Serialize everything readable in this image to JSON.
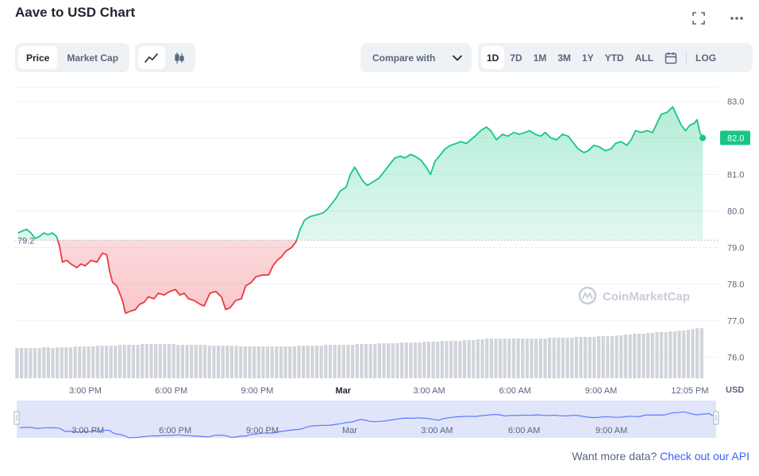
{
  "header": {
    "title": "Aave to USD Chart"
  },
  "toolbar": {
    "metric_tabs": [
      "Price",
      "Market Cap"
    ],
    "active_metric": "Price",
    "chart_types": [
      "line-chart-icon",
      "candlestick-icon"
    ],
    "compare_label": "Compare with",
    "ranges": [
      "1D",
      "7D",
      "1M",
      "3M",
      "1Y",
      "YTD",
      "ALL"
    ],
    "active_range": "1D",
    "log_label": "LOG"
  },
  "colors": {
    "up": "#16c784",
    "down": "#ea3943",
    "volume": "#d1d5db",
    "navigator_fill": "#e1e5fa",
    "navigator_line": "#3861fb",
    "link": "#3861fb"
  },
  "watermark": "CoinMarketCap",
  "footer": {
    "text": "Want more data?",
    "link": "Check out our API"
  },
  "chart_data": {
    "type": "line",
    "currency_label": "USD",
    "baseline": 79.2,
    "baseline_label": "79.2",
    "current_value": 82.0,
    "current_label": "82.0",
    "ylim": [
      75.4,
      83.6
    ],
    "y_ticks": [
      83.0,
      82.0,
      81.0,
      80.0,
      79.0,
      78.0,
      77.0,
      76.0
    ],
    "y_tick_labels": [
      "83.0",
      "82.0",
      "81.0",
      "80.0",
      "79.0",
      "78.0",
      "77.0",
      "76.0"
    ],
    "x_ticks": [
      {
        "t": 1.0,
        "label": "3:00 PM"
      },
      {
        "t": 4.0,
        "label": "6:00 PM"
      },
      {
        "t": 7.0,
        "label": "9:00 PM"
      },
      {
        "t": 10.0,
        "label": "Mar",
        "bold": true
      },
      {
        "t": 13.0,
        "label": "3:00 AM"
      },
      {
        "t": 16.0,
        "label": "6:00 AM"
      },
      {
        "t": 19.0,
        "label": "9:00 AM"
      },
      {
        "t": 22.1,
        "label": "12:05 PM"
      }
    ],
    "x_range": [
      -1.45,
      22.6
    ],
    "navigator_ticks": [
      {
        "t": 1.0,
        "label": "3:00 PM"
      },
      {
        "t": 4.0,
        "label": "6:00 PM"
      },
      {
        "t": 7.0,
        "label": "9:00 PM"
      },
      {
        "t": 10.0,
        "label": "Mar"
      },
      {
        "t": 13.0,
        "label": "3:00 AM"
      },
      {
        "t": 16.0,
        "label": "6:00 AM"
      },
      {
        "t": 19.0,
        "label": "9:00 AM"
      }
    ],
    "series": [
      {
        "values": [
          [
            -1.35,
            79.4
          ],
          [
            -1.2,
            79.45
          ],
          [
            -1.05,
            79.5
          ],
          [
            -0.9,
            79.4
          ],
          [
            -0.75,
            79.25
          ],
          [
            -0.6,
            79.3
          ],
          [
            -0.45,
            79.4
          ],
          [
            -0.3,
            79.35
          ],
          [
            -0.15,
            79.4
          ],
          [
            0.0,
            79.3
          ],
          [
            0.1,
            79.05
          ],
          [
            0.2,
            78.6
          ],
          [
            0.35,
            78.65
          ],
          [
            0.5,
            78.55
          ],
          [
            0.7,
            78.45
          ],
          [
            0.85,
            78.55
          ],
          [
            1.0,
            78.5
          ],
          [
            1.2,
            78.65
          ],
          [
            1.4,
            78.6
          ],
          [
            1.6,
            78.85
          ],
          [
            1.75,
            78.8
          ],
          [
            1.85,
            78.35
          ],
          [
            1.95,
            78.05
          ],
          [
            2.1,
            77.95
          ],
          [
            2.3,
            77.55
          ],
          [
            2.4,
            77.2
          ],
          [
            2.55,
            77.25
          ],
          [
            2.75,
            77.3
          ],
          [
            2.9,
            77.45
          ],
          [
            3.05,
            77.5
          ],
          [
            3.2,
            77.65
          ],
          [
            3.4,
            77.6
          ],
          [
            3.55,
            77.75
          ],
          [
            3.75,
            77.7
          ],
          [
            3.95,
            77.8
          ],
          [
            4.15,
            77.85
          ],
          [
            4.3,
            77.7
          ],
          [
            4.45,
            77.75
          ],
          [
            4.6,
            77.6
          ],
          [
            4.8,
            77.55
          ],
          [
            5.0,
            77.45
          ],
          [
            5.15,
            77.4
          ],
          [
            5.35,
            77.75
          ],
          [
            5.55,
            77.8
          ],
          [
            5.75,
            77.65
          ],
          [
            5.9,
            77.3
          ],
          [
            6.05,
            77.35
          ],
          [
            6.25,
            77.55
          ],
          [
            6.45,
            77.6
          ],
          [
            6.6,
            77.95
          ],
          [
            6.8,
            78.05
          ],
          [
            6.95,
            78.2
          ],
          [
            7.2,
            78.25
          ],
          [
            7.4,
            78.25
          ],
          [
            7.55,
            78.5
          ],
          [
            7.7,
            78.65
          ],
          [
            7.85,
            78.75
          ],
          [
            8.0,
            78.9
          ],
          [
            8.2,
            79.0
          ],
          [
            8.35,
            79.15
          ],
          [
            8.5,
            79.5
          ],
          [
            8.65,
            79.75
          ],
          [
            8.85,
            79.85
          ],
          [
            9.1,
            79.9
          ],
          [
            9.3,
            79.95
          ],
          [
            9.45,
            80.05
          ],
          [
            9.6,
            80.2
          ],
          [
            9.75,
            80.35
          ],
          [
            9.9,
            80.55
          ],
          [
            10.1,
            80.65
          ],
          [
            10.25,
            81.0
          ],
          [
            10.4,
            81.2
          ],
          [
            10.55,
            81.0
          ],
          [
            10.7,
            80.8
          ],
          [
            10.85,
            80.7
          ],
          [
            11.05,
            80.8
          ],
          [
            11.25,
            80.9
          ],
          [
            11.45,
            81.1
          ],
          [
            11.65,
            81.3
          ],
          [
            11.8,
            81.45
          ],
          [
            12.0,
            81.5
          ],
          [
            12.15,
            81.45
          ],
          [
            12.35,
            81.55
          ],
          [
            12.5,
            81.5
          ],
          [
            12.7,
            81.4
          ],
          [
            12.9,
            81.2
          ],
          [
            13.05,
            81.0
          ],
          [
            13.2,
            81.35
          ],
          [
            13.4,
            81.55
          ],
          [
            13.55,
            81.7
          ],
          [
            13.75,
            81.8
          ],
          [
            13.95,
            81.85
          ],
          [
            14.1,
            81.9
          ],
          [
            14.3,
            81.85
          ],
          [
            14.45,
            81.95
          ],
          [
            14.6,
            82.05
          ],
          [
            14.8,
            82.2
          ],
          [
            15.0,
            82.3
          ],
          [
            15.15,
            82.2
          ],
          [
            15.35,
            81.95
          ],
          [
            15.55,
            82.1
          ],
          [
            15.75,
            82.05
          ],
          [
            15.95,
            82.15
          ],
          [
            16.15,
            82.1
          ],
          [
            16.35,
            82.15
          ],
          [
            16.5,
            82.2
          ],
          [
            16.7,
            82.1
          ],
          [
            16.9,
            82.05
          ],
          [
            17.05,
            82.15
          ],
          [
            17.25,
            82.0
          ],
          [
            17.45,
            81.95
          ],
          [
            17.65,
            82.1
          ],
          [
            17.85,
            82.05
          ],
          [
            18.05,
            81.85
          ],
          [
            18.2,
            81.7
          ],
          [
            18.4,
            81.6
          ],
          [
            18.55,
            81.65
          ],
          [
            18.75,
            81.8
          ],
          [
            18.95,
            81.75
          ],
          [
            19.15,
            81.65
          ],
          [
            19.35,
            81.7
          ],
          [
            19.5,
            81.85
          ],
          [
            19.7,
            81.9
          ],
          [
            19.9,
            81.8
          ],
          [
            20.05,
            81.95
          ],
          [
            20.2,
            82.2
          ],
          [
            20.4,
            82.15
          ],
          [
            20.6,
            82.2
          ],
          [
            20.8,
            82.15
          ],
          [
            20.95,
            82.4
          ],
          [
            21.1,
            82.65
          ],
          [
            21.3,
            82.7
          ],
          [
            21.5,
            82.85
          ],
          [
            21.65,
            82.6
          ],
          [
            21.8,
            82.35
          ],
          [
            21.95,
            82.2
          ],
          [
            22.1,
            82.35
          ],
          [
            22.25,
            82.4
          ],
          [
            22.35,
            82.5
          ],
          [
            22.45,
            82.15
          ],
          [
            22.55,
            82.0
          ]
        ]
      }
    ],
    "volume": [
      0.38,
      0.38,
      0.38,
      0.38,
      0.38,
      0.38,
      0.39,
      0.39,
      0.38,
      0.39,
      0.39,
      0.39,
      0.39,
      0.4,
      0.4,
      0.4,
      0.4,
      0.4,
      0.41,
      0.41,
      0.41,
      0.41,
      0.41,
      0.42,
      0.42,
      0.42,
      0.42,
      0.42,
      0.43,
      0.43,
      0.43,
      0.43,
      0.43,
      0.43,
      0.43,
      0.43,
      0.42,
      0.42,
      0.42,
      0.42,
      0.42,
      0.42,
      0.42,
      0.41,
      0.41,
      0.41,
      0.41,
      0.41,
      0.41,
      0.41,
      0.4,
      0.4,
      0.4,
      0.4,
      0.4,
      0.4,
      0.4,
      0.4,
      0.4,
      0.4,
      0.4,
      0.4,
      0.4,
      0.41,
      0.41,
      0.41,
      0.41,
      0.41,
      0.41,
      0.42,
      0.42,
      0.42,
      0.42,
      0.42,
      0.42,
      0.42,
      0.43,
      0.43,
      0.43,
      0.43,
      0.43,
      0.44,
      0.44,
      0.44,
      0.44,
      0.44,
      0.45,
      0.45,
      0.45,
      0.45,
      0.45,
      0.46,
      0.46,
      0.46,
      0.46,
      0.47,
      0.47,
      0.47,
      0.47,
      0.47,
      0.48,
      0.48,
      0.48,
      0.49,
      0.49,
      0.5,
      0.5,
      0.5,
      0.5,
      0.5,
      0.5,
      0.5,
      0.5,
      0.5,
      0.5,
      0.5,
      0.5,
      0.5,
      0.5,
      0.51,
      0.51,
      0.51,
      0.51,
      0.51,
      0.51,
      0.52,
      0.52,
      0.52,
      0.52,
      0.52,
      0.53,
      0.53,
      0.53,
      0.53,
      0.54,
      0.54,
      0.55,
      0.55,
      0.56,
      0.56,
      0.56,
      0.57,
      0.57,
      0.58,
      0.58,
      0.58,
      0.59,
      0.59,
      0.6,
      0.6,
      0.61,
      0.62,
      0.63,
      0.63
    ]
  }
}
